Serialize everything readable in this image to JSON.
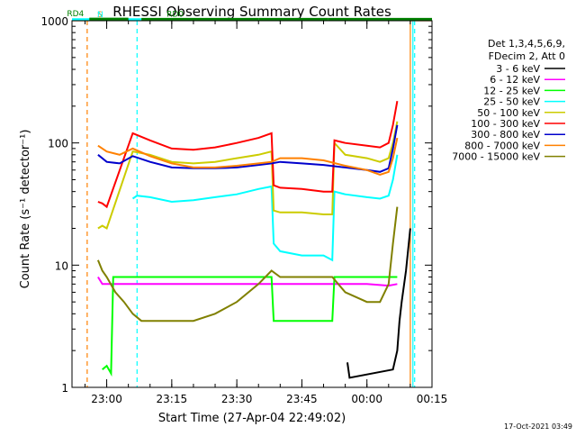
{
  "chart_data": {
    "type": "line",
    "title": "RHESSI Observing Summary Count Rates",
    "xlabel": "Start Time (27-Apr-04 22:49:02)",
    "ylabel": "Count Rate (s⁻¹ detector⁻¹)",
    "yscale": "log",
    "ylim": [
      1,
      1000
    ],
    "xlim_minutes": [
      -8,
      75
    ],
    "x_ticks": [
      {
        "min": 0,
        "label": "23:00"
      },
      {
        "min": 15,
        "label": "23:15"
      },
      {
        "min": 30,
        "label": "23:30"
      },
      {
        "min": 45,
        "label": "23:45"
      },
      {
        "min": 60,
        "label": "00:00"
      },
      {
        "min": 75,
        "label": "00:15"
      }
    ],
    "y_ticks": [
      {
        "v": 1,
        "label": "1"
      },
      {
        "v": 10,
        "label": "10"
      },
      {
        "v": 100,
        "label": "100"
      },
      {
        "v": 1000,
        "label": "1000"
      }
    ],
    "legend_header": [
      "Det 1,3,4,5,6,9,",
      "FDecim 2, Att 0"
    ],
    "series": [
      {
        "name": "3 - 6 keV",
        "color": "#000000",
        "x": [
          -8,
          55,
          55.5,
          56,
          66,
          67,
          67.5,
          68,
          69,
          70
        ],
        "y": [
          null,
          null,
          1.6,
          1.2,
          1.4,
          2.0,
          3.5,
          5.0,
          9.0,
          20.0
        ]
      },
      {
        "name": "6 - 12 keV",
        "color": "#ff00ff",
        "x": [
          -8,
          -2,
          -1,
          0,
          10,
          20,
          30,
          40,
          50,
          60,
          65,
          67
        ],
        "y": [
          null,
          8,
          7,
          7,
          7,
          7,
          7,
          7,
          7,
          7,
          6.8,
          7.0
        ]
      },
      {
        "name": "12 - 25 keV",
        "color": "#00ff00",
        "x": [
          -8,
          -1,
          0,
          1,
          1.5,
          3,
          6,
          10,
          20,
          30,
          38,
          38.5,
          40,
          45,
          52,
          52.5,
          55,
          60,
          65,
          67
        ],
        "y": [
          null,
          1.4,
          1.5,
          1.3,
          8,
          8,
          8,
          8,
          8,
          8,
          8,
          3.5,
          3.5,
          3.5,
          3.5,
          8,
          8,
          8,
          8,
          8
        ]
      },
      {
        "name": "25 - 50 keV",
        "color": "#00ffff",
        "x": [
          -8,
          6,
          7,
          10,
          15,
          20,
          25,
          30,
          35,
          38,
          38.5,
          40,
          45,
          50,
          52,
          52.5,
          55,
          60,
          63,
          65,
          66,
          67
        ],
        "y": [
          null,
          35,
          37,
          36,
          33,
          34,
          36,
          38,
          42,
          44,
          15,
          13,
          12,
          12,
          11,
          40,
          38,
          36,
          35,
          37,
          50,
          80
        ]
      },
      {
        "name": "50 - 100 keV",
        "color": "#cccc00",
        "x": [
          -8,
          -2,
          -1,
          0,
          6,
          10,
          15,
          20,
          25,
          30,
          35,
          38,
          38.5,
          40,
          45,
          50,
          52,
          52.5,
          55,
          60,
          63,
          65,
          66,
          67
        ],
        "y": [
          null,
          20,
          21,
          20,
          85,
          80,
          70,
          68,
          70,
          75,
          80,
          85,
          28,
          27,
          27,
          26,
          26,
          100,
          80,
          75,
          70,
          75,
          100,
          150
        ]
      },
      {
        "name": "100 - 300 keV",
        "color": "#ff0000",
        "x": [
          -8,
          -2,
          -1,
          0,
          6,
          10,
          15,
          20,
          25,
          30,
          35,
          38,
          38.5,
          40,
          45,
          50,
          52,
          52.5,
          55,
          60,
          63,
          65,
          66,
          67
        ],
        "y": [
          null,
          33,
          32,
          30,
          120,
          105,
          90,
          88,
          92,
          100,
          110,
          120,
          45,
          43,
          42,
          40,
          40,
          105,
          100,
          95,
          92,
          100,
          140,
          220
        ]
      },
      {
        "name": "300 - 800 keV",
        "color": "#0000cc",
        "x": [
          -8,
          -2,
          0,
          3,
          6,
          10,
          15,
          20,
          25,
          30,
          35,
          38,
          40,
          45,
          50,
          55,
          60,
          63,
          65,
          66,
          67
        ],
        "y": [
          null,
          80,
          70,
          68,
          78,
          70,
          63,
          62,
          62,
          63,
          66,
          68,
          70,
          68,
          66,
          63,
          60,
          58,
          62,
          90,
          140
        ]
      },
      {
        "name": "800 - 7000 keV",
        "color": "#ff8000",
        "x": [
          -8,
          -2,
          0,
          3,
          6,
          10,
          15,
          20,
          25,
          30,
          35,
          38,
          40,
          45,
          50,
          55,
          60,
          63,
          65,
          66,
          67
        ],
        "y": [
          null,
          95,
          85,
          80,
          90,
          78,
          68,
          63,
          63,
          65,
          68,
          70,
          75,
          75,
          72,
          65,
          60,
          55,
          58,
          75,
          110
        ]
      },
      {
        "name": "7000 - 15000 keV",
        "color": "#808000",
        "x": [
          -8,
          -2,
          -1,
          0,
          2,
          4,
          6,
          8,
          10,
          15,
          20,
          25,
          30,
          35,
          38,
          40,
          45,
          50,
          52,
          55,
          60,
          63,
          65,
          66,
          67
        ],
        "y": [
          null,
          11,
          9,
          8,
          6,
          5,
          4,
          3.5,
          3.5,
          3.5,
          3.5,
          4,
          5,
          7,
          9,
          8,
          8,
          8,
          8,
          6,
          5,
          5,
          7,
          15,
          30
        ]
      }
    ],
    "flags": [
      {
        "label": "S",
        "color": "#ff8000",
        "y": 1015,
        "segments": [
          [
            -8,
            -4
          ],
          [
            70,
            75
          ]
        ]
      },
      {
        "label": "N",
        "color": "#00ffff",
        "y": 1021,
        "segments": [
          [
            -8,
            8
          ],
          [
            70,
            75
          ]
        ]
      },
      {
        "label": "RD0",
        "color": "#008000",
        "y": 1029,
        "segments": [
          [
            8,
            35
          ],
          [
            35,
            51
          ],
          [
            51,
            75
          ]
        ]
      },
      {
        "label": "RD4",
        "color": "#008000",
        "y": 1033,
        "segments": [
          [
            -4,
            5
          ]
        ]
      }
    ],
    "markers": [
      {
        "min": -4.5,
        "color": "#ff8000",
        "dash": true
      },
      {
        "min": 7,
        "color": "#00ffff",
        "dash": true
      },
      {
        "min": 70,
        "color": "#ff8000",
        "dash": false
      },
      {
        "min": 70.6,
        "color": "#00ffff",
        "dash": false
      },
      {
        "min": 71,
        "color": "#00ffff",
        "dash": true
      }
    ],
    "timestamp": "17-Oct-2021 03:49"
  }
}
